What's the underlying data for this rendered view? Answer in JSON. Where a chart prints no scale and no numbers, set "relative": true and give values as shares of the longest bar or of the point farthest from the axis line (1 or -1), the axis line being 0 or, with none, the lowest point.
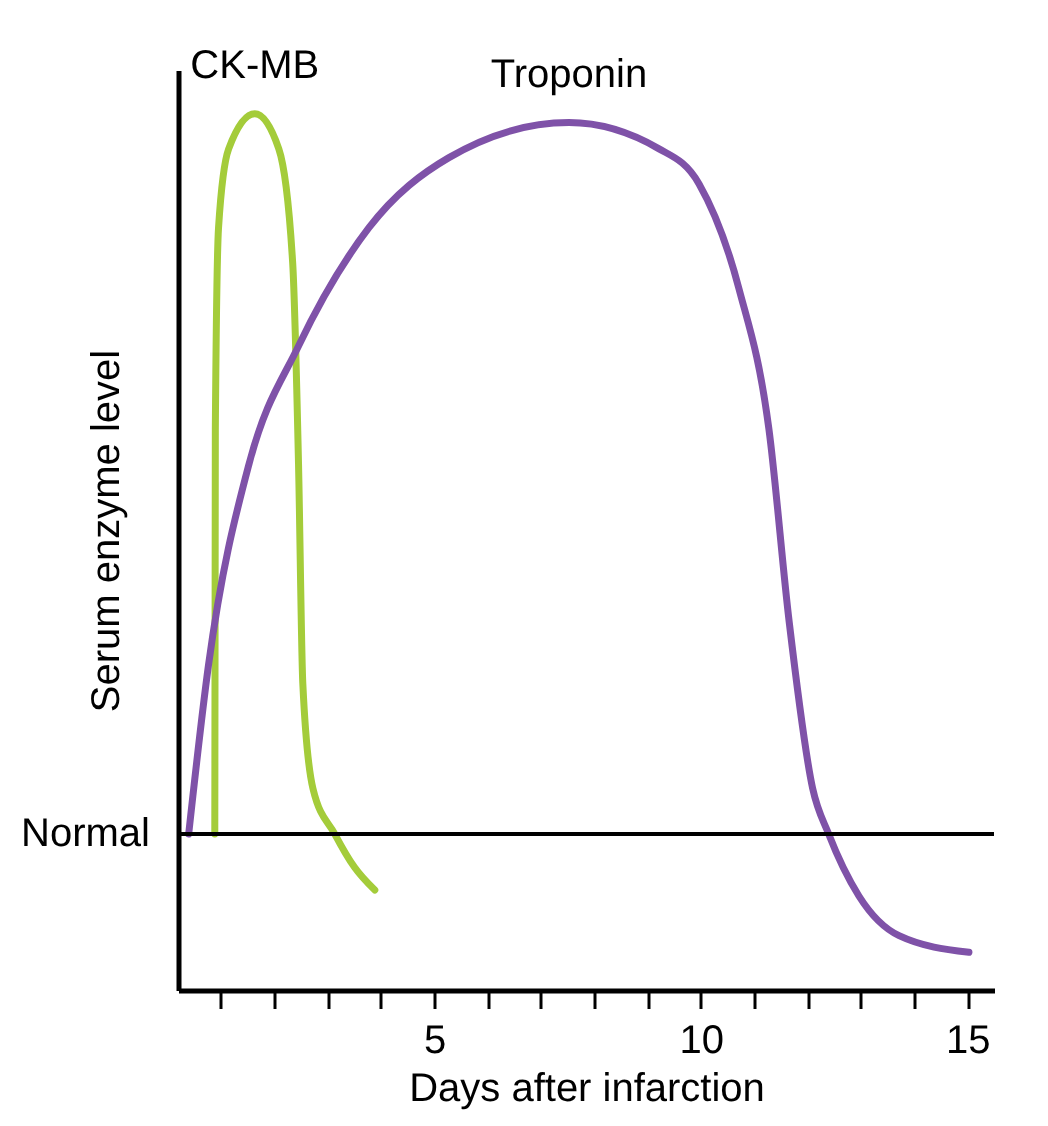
{
  "chart_data": {
    "type": "line",
    "relative": true,
    "xlabel": "Days after infarction",
    "ylabel": "Serum enzyme level",
    "xlim": [
      0.2,
      15.5
    ],
    "xticks": [
      {
        "value": 1,
        "label": null
      },
      {
        "value": 2,
        "label": null
      },
      {
        "value": 3,
        "label": null
      },
      {
        "value": 4,
        "label": null
      },
      5,
      {
        "value": 6,
        "label": null
      },
      {
        "value": 7,
        "label": null
      },
      {
        "value": 8,
        "label": null
      },
      {
        "value": 9,
        "label": null
      },
      10,
      {
        "value": 11,
        "label": null
      },
      {
        "value": 12,
        "label": null
      },
      {
        "value": 13,
        "label": null
      },
      {
        "value": 14,
        "label": null
      },
      15
    ],
    "grid": false,
    "line_style": "solid",
    "marker": "none",
    "ref_lines": [
      {
        "axis": "y",
        "value": 0.178,
        "label": "Normal",
        "color": "#000000"
      }
    ],
    "series": [
      {
        "name": "CK-MB",
        "color": "#a4cc3a",
        "x": [
          0.89,
          0.9,
          0.96,
          1.15,
          1.64,
          2.09,
          2.35,
          2.46,
          2.54,
          2.73,
          3.14,
          3.51,
          3.89
        ],
        "values": [
          0.178,
          0.64,
          0.87,
          0.96,
          1.0,
          0.96,
          0.83,
          0.6,
          0.35,
          0.23,
          0.178,
          0.14,
          0.114
        ]
      },
      {
        "name": "Troponin",
        "color": "#7f52a8",
        "x": [
          0.4,
          0.77,
          1.53,
          2.46,
          3.78,
          5.28,
          7.53,
          9.22,
          9.97,
          10.72,
          11.28,
          11.66,
          12.1,
          12.4,
          12.97,
          13.72,
          15.03
        ],
        "values": [
          0.178,
          0.37,
          0.6,
          0.735,
          0.87,
          0.95,
          0.99,
          0.96,
          0.92,
          0.8,
          0.64,
          0.42,
          0.23,
          0.178,
          0.107,
          0.062,
          0.043
        ]
      }
    ]
  }
}
